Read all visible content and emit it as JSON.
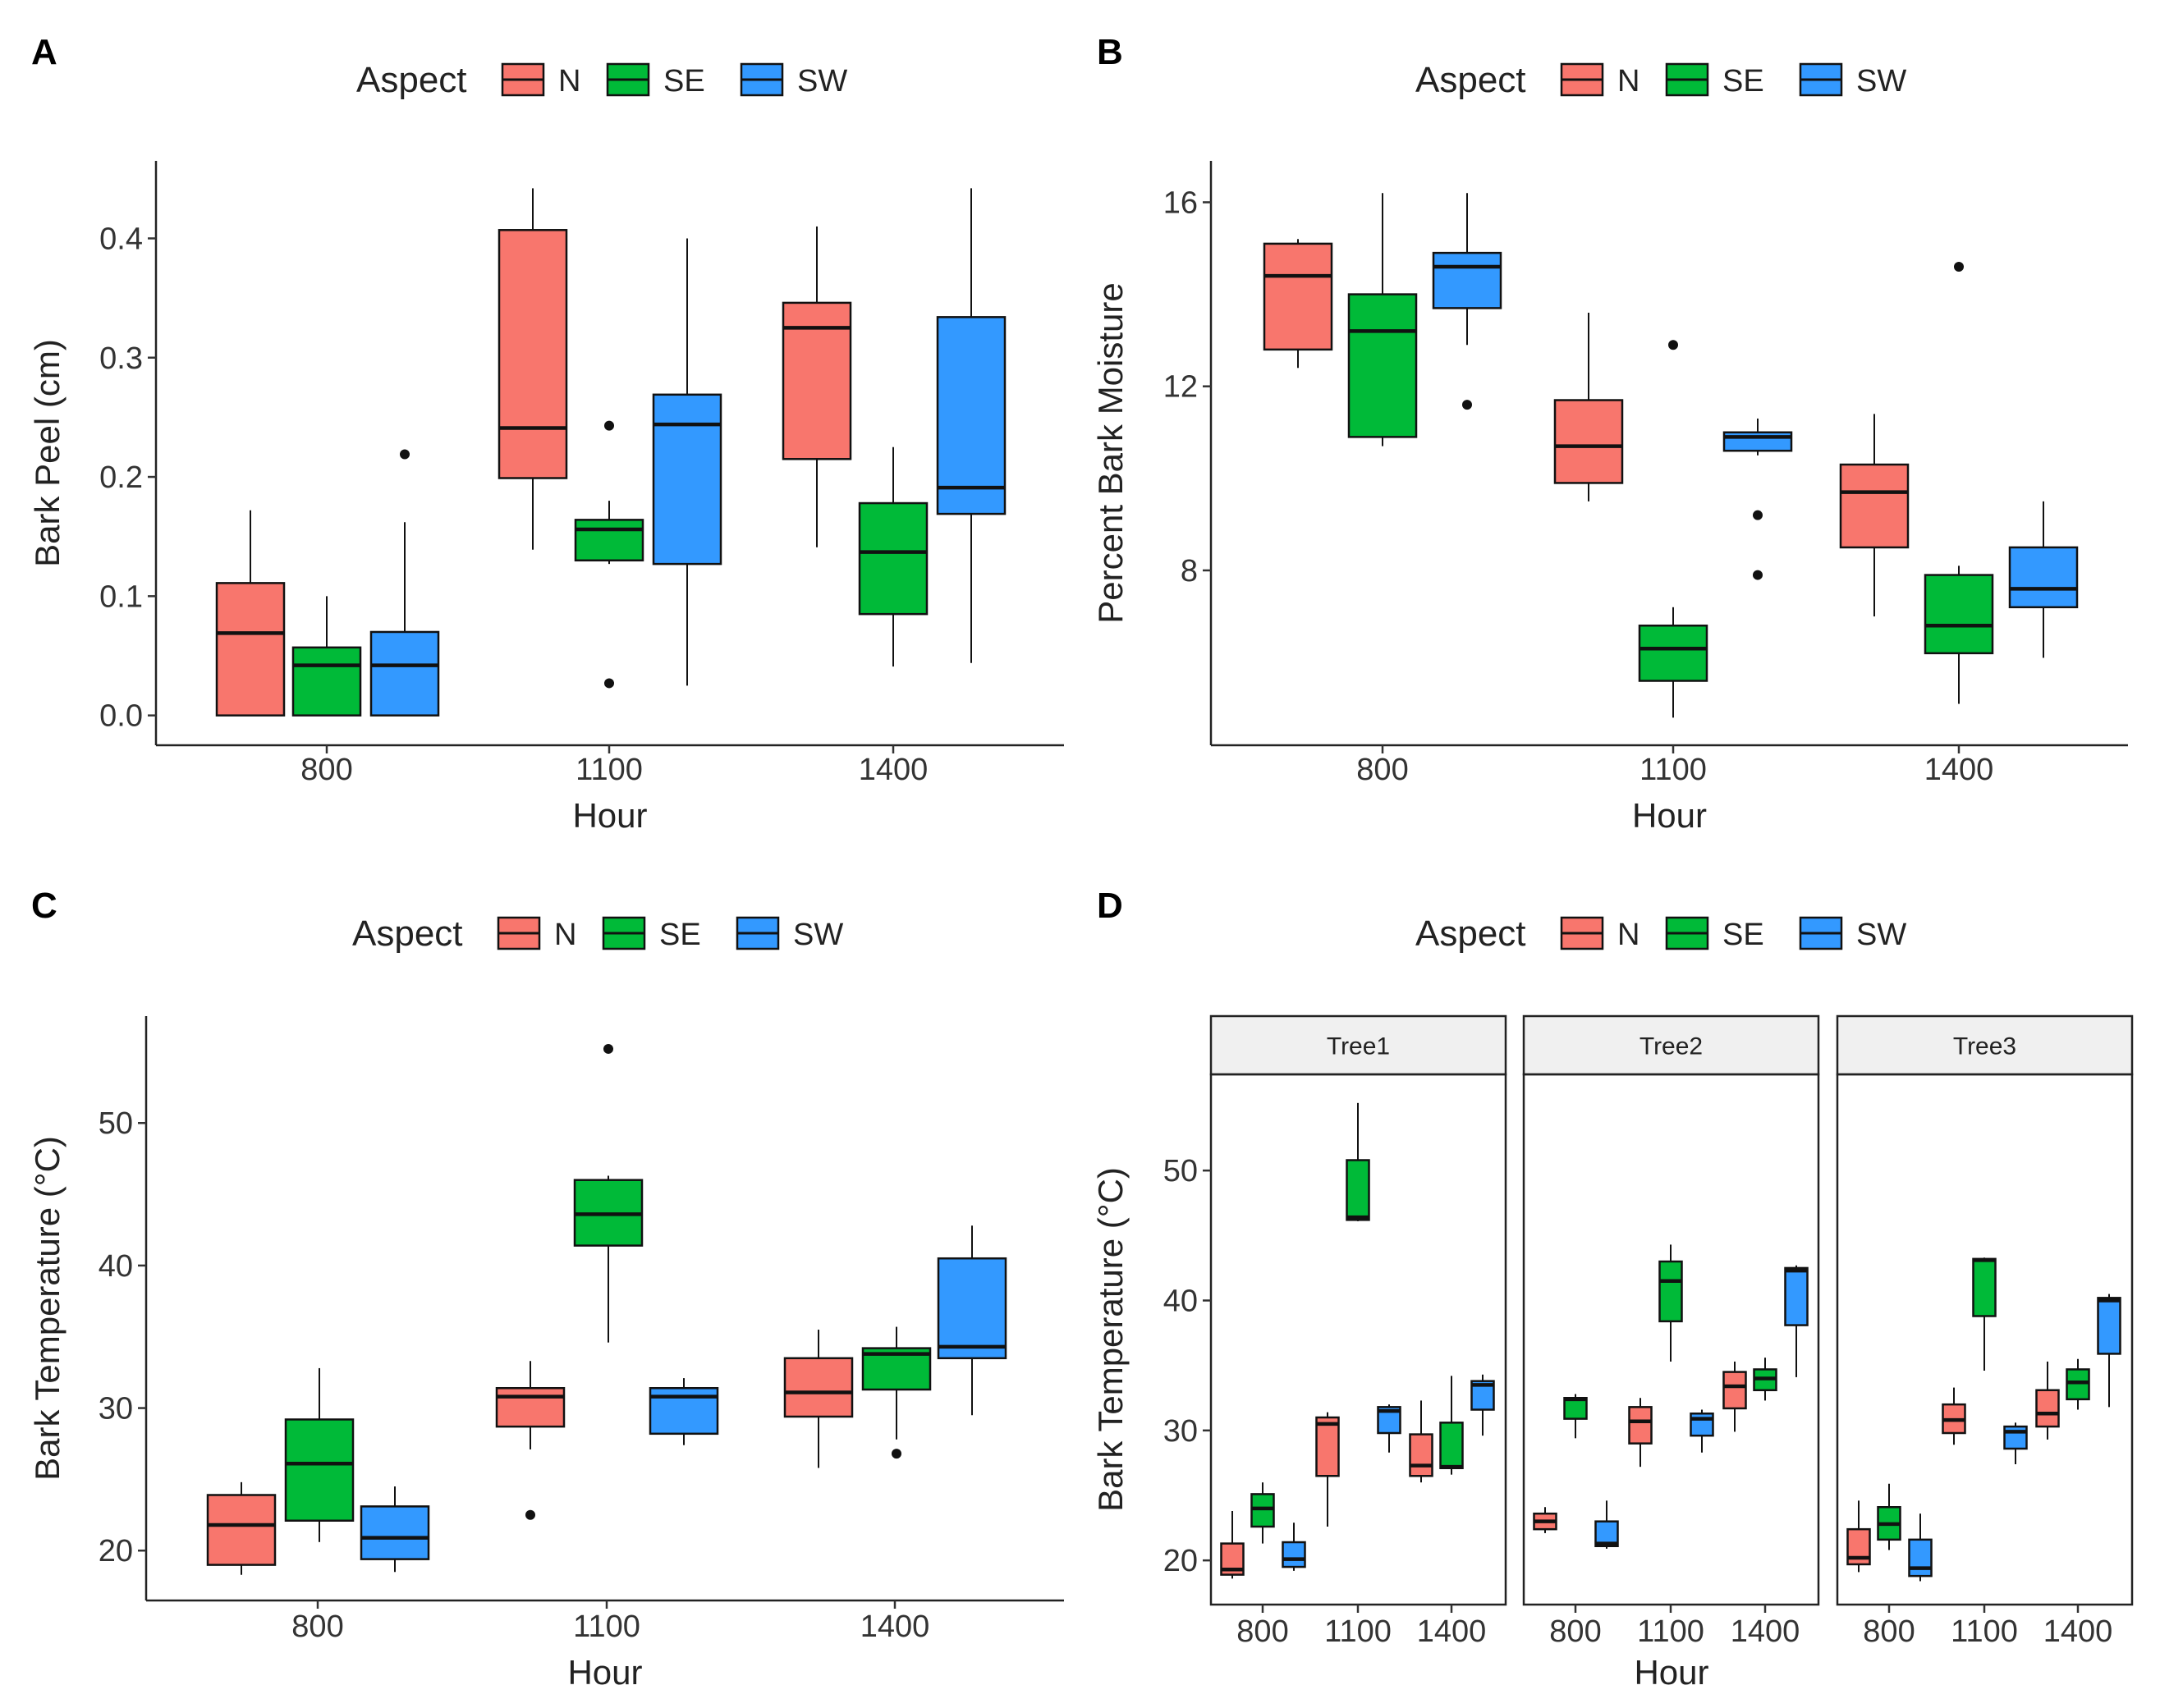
{
  "legend": {
    "title": "Aspect",
    "items": [
      {
        "label": "N",
        "color": "#F8766D"
      },
      {
        "label": "SE",
        "color": "#00BA38"
      },
      {
        "label": "SW",
        "color": "#3399FF"
      }
    ]
  },
  "chart_data": [
    {
      "panel": "A",
      "type": "boxplot",
      "xlabel": "Hour",
      "ylabel": "Bark Peel (cm)",
      "categories": [
        "800",
        "1100",
        "1400"
      ],
      "yticks": [
        0.0,
        0.1,
        0.2,
        0.3,
        0.4
      ],
      "ytick_labels": [
        "0.0",
        "0.1",
        "0.2",
        "0.3",
        "0.4"
      ],
      "ylim": [
        -0.025,
        0.465
      ],
      "series": [
        {
          "name": "N",
          "boxes": [
            {
              "whisker_low": 0.0,
              "q1": 0.0,
              "median": 0.069,
              "q3": 0.111,
              "whisker_high": 0.172,
              "outliers": []
            },
            {
              "whisker_low": 0.139,
              "q1": 0.199,
              "median": 0.241,
              "q3": 0.407,
              "whisker_high": 0.442,
              "outliers": []
            },
            {
              "whisker_low": 0.141,
              "q1": 0.215,
              "median": 0.325,
              "q3": 0.346,
              "whisker_high": 0.41,
              "outliers": []
            }
          ]
        },
        {
          "name": "SE",
          "boxes": [
            {
              "whisker_low": 0.0,
              "q1": 0.0,
              "median": 0.042,
              "q3": 0.057,
              "whisker_high": 0.1,
              "outliers": []
            },
            {
              "whisker_low": 0.127,
              "q1": 0.13,
              "median": 0.156,
              "q3": 0.164,
              "whisker_high": 0.18,
              "outliers": [
                0.027,
                0.243
              ]
            },
            {
              "whisker_low": 0.041,
              "q1": 0.085,
              "median": 0.137,
              "q3": 0.178,
              "whisker_high": 0.225,
              "outliers": []
            }
          ]
        },
        {
          "name": "SW",
          "boxes": [
            {
              "whisker_low": 0.0,
              "q1": 0.0,
              "median": 0.042,
              "q3": 0.07,
              "whisker_high": 0.162,
              "outliers": [
                0.219
              ]
            },
            {
              "whisker_low": 0.025,
              "q1": 0.127,
              "median": 0.244,
              "q3": 0.269,
              "whisker_high": 0.4,
              "outliers": []
            },
            {
              "whisker_low": 0.044,
              "q1": 0.169,
              "median": 0.191,
              "q3": 0.334,
              "whisker_high": 0.442,
              "outliers": []
            }
          ]
        }
      ]
    },
    {
      "panel": "B",
      "type": "boxplot",
      "xlabel": "Hour",
      "ylabel": "Percent Bark Moisture",
      "categories": [
        "800",
        "1100",
        "1400"
      ],
      "yticks": [
        8,
        12,
        16
      ],
      "ytick_labels": [
        "8",
        "12",
        "16"
      ],
      "ylim": [
        4.2,
        16.9
      ],
      "series": [
        {
          "name": "N",
          "boxes": [
            {
              "whisker_low": 12.4,
              "q1": 12.8,
              "median": 14.4,
              "q3": 15.1,
              "whisker_high": 15.2,
              "outliers": []
            },
            {
              "whisker_low": 9.5,
              "q1": 9.9,
              "median": 10.7,
              "q3": 11.7,
              "whisker_high": 13.6,
              "outliers": []
            },
            {
              "whisker_low": 7.0,
              "q1": 8.5,
              "median": 9.7,
              "q3": 10.3,
              "whisker_high": 11.4,
              "outliers": []
            }
          ]
        },
        {
          "name": "SE",
          "boxes": [
            {
              "whisker_low": 10.7,
              "q1": 10.9,
              "median": 13.2,
              "q3": 14.0,
              "whisker_high": 16.2,
              "outliers": []
            },
            {
              "whisker_low": 4.8,
              "q1": 5.6,
              "median": 6.3,
              "q3": 6.8,
              "whisker_high": 7.2,
              "outliers": [
                12.9
              ]
            },
            {
              "whisker_low": 5.1,
              "q1": 6.2,
              "median": 6.8,
              "q3": 7.9,
              "whisker_high": 8.1,
              "outliers": [
                14.6
              ]
            }
          ]
        },
        {
          "name": "SW",
          "boxes": [
            {
              "whisker_low": 12.9,
              "q1": 13.7,
              "median": 14.6,
              "q3": 14.9,
              "whisker_high": 16.2,
              "outliers": [
                11.6
              ]
            },
            {
              "whisker_low": 10.5,
              "q1": 10.6,
              "median": 10.9,
              "q3": 11.0,
              "whisker_high": 11.3,
              "outliers": [
                9.2,
                7.9
              ]
            },
            {
              "whisker_low": 6.1,
              "q1": 7.2,
              "median": 7.6,
              "q3": 8.5,
              "whisker_high": 9.5,
              "outliers": []
            }
          ]
        }
      ]
    },
    {
      "panel": "C",
      "type": "boxplot",
      "xlabel": "Hour",
      "ylabel": "Bark Temperature (°C)",
      "categories": [
        "800",
        "1100",
        "1400"
      ],
      "yticks": [
        20,
        30,
        40,
        50
      ],
      "ytick_labels": [
        "20",
        "30",
        "40",
        "50"
      ],
      "ylim": [
        16.5,
        57.5
      ],
      "series": [
        {
          "name": "N",
          "boxes": [
            {
              "whisker_low": 18.3,
              "q1": 19.0,
              "median": 21.8,
              "q3": 23.9,
              "whisker_high": 24.8,
              "outliers": []
            },
            {
              "whisker_low": 27.1,
              "q1": 28.7,
              "median": 30.8,
              "q3": 31.4,
              "whisker_high": 33.3,
              "outliers": [
                22.5
              ]
            },
            {
              "whisker_low": 25.8,
              "q1": 29.4,
              "median": 31.1,
              "q3": 33.5,
              "whisker_high": 35.5,
              "outliers": []
            }
          ]
        },
        {
          "name": "SE",
          "boxes": [
            {
              "whisker_low": 20.6,
              "q1": 22.1,
              "median": 26.1,
              "q3": 29.2,
              "whisker_high": 32.8,
              "outliers": []
            },
            {
              "whisker_low": 34.6,
              "q1": 41.4,
              "median": 43.6,
              "q3": 46.0,
              "whisker_high": 46.3,
              "outliers": [
                55.2
              ]
            },
            {
              "whisker_low": 27.8,
              "q1": 31.3,
              "median": 33.8,
              "q3": 34.2,
              "whisker_high": 35.7,
              "outliers": [
                26.8
              ]
            }
          ]
        },
        {
          "name": "SW",
          "boxes": [
            {
              "whisker_low": 18.5,
              "q1": 19.4,
              "median": 20.9,
              "q3": 23.1,
              "whisker_high": 24.5,
              "outliers": []
            },
            {
              "whisker_low": 27.4,
              "q1": 28.2,
              "median": 30.8,
              "q3": 31.4,
              "whisker_high": 32.1,
              "outliers": []
            },
            {
              "whisker_low": 29.5,
              "q1": 33.5,
              "median": 34.3,
              "q3": 40.5,
              "whisker_high": 42.8,
              "outliers": []
            }
          ]
        }
      ]
    },
    {
      "panel": "D",
      "type": "boxplot",
      "xlabel": "Hour",
      "ylabel": "Bark Temperature (°C)",
      "categories": [
        "800",
        "1100",
        "1400"
      ],
      "yticks": [
        20,
        30,
        40,
        50
      ],
      "ytick_labels": [
        "20",
        "30",
        "40",
        "50"
      ],
      "ylim": [
        16.6,
        57.4
      ],
      "facets": [
        {
          "label": "Tree1",
          "series": [
            {
              "name": "N",
              "boxes": [
                {
                  "whisker_low": 18.6,
                  "q1": 18.9,
                  "median": 19.3,
                  "q3": 21.3,
                  "whisker_high": 23.8,
                  "outliers": []
                },
                {
                  "whisker_low": 22.6,
                  "q1": 26.5,
                  "median": 30.5,
                  "q3": 31.0,
                  "whisker_high": 31.4,
                  "outliers": []
                },
                {
                  "whisker_low": 26.0,
                  "q1": 26.5,
                  "median": 27.3,
                  "q3": 29.7,
                  "whisker_high": 32.3,
                  "outliers": []
                }
              ]
            },
            {
              "name": "SE",
              "boxes": [
                {
                  "whisker_low": 21.3,
                  "q1": 22.6,
                  "median": 24.0,
                  "q3": 25.1,
                  "whisker_high": 26.0,
                  "outliers": []
                },
                {
                  "whisker_low": 46.1,
                  "q1": 46.2,
                  "median": 46.4,
                  "q3": 50.8,
                  "whisker_high": 55.2,
                  "outliers": []
                },
                {
                  "whisker_low": 26.6,
                  "q1": 27.1,
                  "median": 27.2,
                  "q3": 30.6,
                  "whisker_high": 34.2,
                  "outliers": []
                }
              ]
            },
            {
              "name": "SW",
              "boxes": [
                {
                  "whisker_low": 19.2,
                  "q1": 19.5,
                  "median": 20.1,
                  "q3": 21.4,
                  "whisker_high": 22.9,
                  "outliers": []
                },
                {
                  "whisker_low": 28.3,
                  "q1": 29.8,
                  "median": 31.5,
                  "q3": 31.8,
                  "whisker_high": 32.0,
                  "outliers": []
                },
                {
                  "whisker_low": 29.6,
                  "q1": 31.6,
                  "median": 33.5,
                  "q3": 33.8,
                  "whisker_high": 34.3,
                  "outliers": []
                }
              ]
            }
          ]
        },
        {
          "label": "Tree2",
          "series": [
            {
              "name": "N",
              "boxes": [
                {
                  "whisker_low": 22.1,
                  "q1": 22.4,
                  "median": 23.0,
                  "q3": 23.6,
                  "whisker_high": 24.1,
                  "outliers": []
                },
                {
                  "whisker_low": 27.2,
                  "q1": 29.0,
                  "median": 30.7,
                  "q3": 31.8,
                  "whisker_high": 32.5,
                  "outliers": []
                },
                {
                  "whisker_low": 29.9,
                  "q1": 31.7,
                  "median": 33.4,
                  "q3": 34.5,
                  "whisker_high": 35.3,
                  "outliers": []
                }
              ]
            },
            {
              "name": "SE",
              "boxes": [
                {
                  "whisker_low": 29.4,
                  "q1": 30.9,
                  "median": 32.4,
                  "q3": 32.5,
                  "whisker_high": 32.8,
                  "outliers": []
                },
                {
                  "whisker_low": 35.3,
                  "q1": 38.4,
                  "median": 41.5,
                  "q3": 43.0,
                  "whisker_high": 44.3,
                  "outliers": []
                },
                {
                  "whisker_low": 32.3,
                  "q1": 33.1,
                  "median": 34.0,
                  "q3": 34.7,
                  "whisker_high": 35.6,
                  "outliers": []
                }
              ]
            },
            {
              "name": "SW",
              "boxes": [
                {
                  "whisker_low": 20.9,
                  "q1": 21.1,
                  "median": 21.3,
                  "q3": 23.0,
                  "whisker_high": 24.6,
                  "outliers": []
                },
                {
                  "whisker_low": 28.3,
                  "q1": 29.6,
                  "median": 30.9,
                  "q3": 31.3,
                  "whisker_high": 31.6,
                  "outliers": []
                },
                {
                  "whisker_low": 34.1,
                  "q1": 38.1,
                  "median": 42.3,
                  "q3": 42.5,
                  "whisker_high": 42.7,
                  "outliers": []
                }
              ]
            }
          ]
        },
        {
          "label": "Tree3",
          "series": [
            {
              "name": "N",
              "boxes": [
                {
                  "whisker_low": 19.1,
                  "q1": 19.7,
                  "median": 20.2,
                  "q3": 22.4,
                  "whisker_high": 24.6,
                  "outliers": []
                },
                {
                  "whisker_low": 28.9,
                  "q1": 29.8,
                  "median": 30.8,
                  "q3": 32.0,
                  "whisker_high": 33.3,
                  "outliers": []
                },
                {
                  "whisker_low": 29.3,
                  "q1": 30.3,
                  "median": 31.3,
                  "q3": 33.1,
                  "whisker_high": 35.3,
                  "outliers": []
                }
              ]
            },
            {
              "name": "SE",
              "boxes": [
                {
                  "whisker_low": 20.8,
                  "q1": 21.6,
                  "median": 22.8,
                  "q3": 24.1,
                  "whisker_high": 25.9,
                  "outliers": []
                },
                {
                  "whisker_low": 34.6,
                  "q1": 38.8,
                  "median": 43.1,
                  "q3": 43.2,
                  "whisker_high": 43.3,
                  "outliers": []
                },
                {
                  "whisker_low": 31.6,
                  "q1": 32.4,
                  "median": 33.7,
                  "q3": 34.7,
                  "whisker_high": 35.5,
                  "outliers": []
                }
              ]
            },
            {
              "name": "SW",
              "boxes": [
                {
                  "whisker_low": 18.4,
                  "q1": 18.8,
                  "median": 19.4,
                  "q3": 21.6,
                  "whisker_high": 23.6,
                  "outliers": []
                },
                {
                  "whisker_low": 27.4,
                  "q1": 28.6,
                  "median": 29.9,
                  "q3": 30.3,
                  "whisker_high": 30.6,
                  "outliers": []
                },
                {
                  "whisker_low": 31.8,
                  "q1": 35.9,
                  "median": 40.0,
                  "q3": 40.2,
                  "whisker_high": 40.5,
                  "outliers": []
                }
              ]
            }
          ]
        }
      ]
    }
  ]
}
